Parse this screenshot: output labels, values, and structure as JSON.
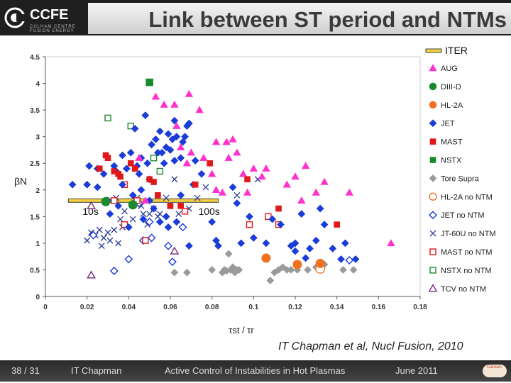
{
  "header": {
    "logo": "CCFE",
    "logo_subtitle": "CULHAM CENTRE FUSION ENERGY",
    "title": "Link between ST period and NTMs"
  },
  "citation": "IT Chapman et al, Nucl Fusion, 2010",
  "footer": {
    "page": "38 / 31",
    "author": "IT Chapman",
    "talk": "Active Control of Instabilities in Hot Plasmas",
    "date": "June 2011",
    "logo": "Cancun"
  },
  "chart_data": {
    "type": "scatter",
    "xlabel": "τst / τr",
    "ylabel": "βN",
    "xlim": [
      0,
      0.18
    ],
    "ylim": [
      0,
      4.5
    ],
    "xticks": [
      "0",
      "0.02",
      "0.04",
      "0.06",
      "0.08",
      "0.1",
      "0.12",
      "0.14",
      "0.16",
      "0.18"
    ],
    "yticks": [
      "0",
      "0.5",
      "1",
      "1.5",
      "2",
      "2.5",
      "3",
      "3.5",
      "4",
      "4.5"
    ],
    "grid": "none",
    "legend_placement": "right",
    "iter_legend": {
      "name": "ITER",
      "color": "#f4d03f"
    },
    "iter_band": {
      "y": 1.8,
      "x_start": 0.011,
      "x_end": 0.083,
      "labels": [
        "10s",
        "100s"
      ]
    },
    "series": [
      {
        "name": "AUG",
        "marker": "triangle",
        "color": "#ff33cc",
        "filled": true,
        "points": [
          [
            0.045,
            2.6
          ],
          [
            0.048,
            1.8
          ],
          [
            0.053,
            3.75
          ],
          [
            0.057,
            3.6
          ],
          [
            0.062,
            3.6
          ],
          [
            0.063,
            3.2
          ],
          [
            0.065,
            2.8
          ],
          [
            0.068,
            2.5
          ],
          [
            0.069,
            3.8
          ],
          [
            0.07,
            2.7
          ],
          [
            0.074,
            3.5
          ],
          [
            0.076,
            2.6
          ],
          [
            0.08,
            2.3
          ],
          [
            0.082,
            2.9
          ],
          [
            0.082,
            2.0
          ],
          [
            0.085,
            1.95
          ],
          [
            0.087,
            2.9
          ],
          [
            0.088,
            2.6
          ],
          [
            0.09,
            2.95
          ],
          [
            0.092,
            2.7
          ],
          [
            0.095,
            2.3
          ],
          [
            0.097,
            1.95
          ],
          [
            0.1,
            2.4
          ],
          [
            0.104,
            2.25
          ],
          [
            0.106,
            2.4
          ],
          [
            0.116,
            2.1
          ],
          [
            0.12,
            2.25
          ],
          [
            0.123,
            1.8
          ],
          [
            0.125,
            2.45
          ],
          [
            0.13,
            1.95
          ],
          [
            0.134,
            2.15
          ],
          [
            0.146,
            1.95
          ],
          [
            0.166,
            1.0
          ]
        ]
      },
      {
        "name": "DIII-D",
        "marker": "circle",
        "color": "#1a8a2e",
        "filled": true,
        "points": [
          [
            0.029,
            1.78
          ],
          [
            0.042,
            1.72
          ]
        ]
      },
      {
        "name": "HL-2A",
        "marker": "circle",
        "color": "#f07020",
        "filled": true,
        "points": [
          [
            0.106,
            0.72
          ],
          [
            0.121,
            0.6
          ],
          [
            0.132,
            0.62
          ]
        ]
      },
      {
        "name": "JET",
        "marker": "diamond",
        "color": "#1a3cd8",
        "filled": true,
        "points": [
          [
            0.013,
            2.1
          ],
          [
            0.02,
            2.1
          ],
          [
            0.021,
            2.45
          ],
          [
            0.025,
            2.4
          ],
          [
            0.025,
            2.05
          ],
          [
            0.028,
            2.3
          ],
          [
            0.03,
            1.8
          ],
          [
            0.031,
            1.55
          ],
          [
            0.033,
            2.45
          ],
          [
            0.034,
            2.35
          ],
          [
            0.035,
            1.7
          ],
          [
            0.037,
            2.1
          ],
          [
            0.037,
            2.65
          ],
          [
            0.039,
            2.4
          ],
          [
            0.04,
            1.3
          ],
          [
            0.041,
            2.7
          ],
          [
            0.042,
            1.9
          ],
          [
            0.043,
            3.15
          ],
          [
            0.044,
            2.45
          ],
          [
            0.045,
            2.3
          ],
          [
            0.046,
            2.0
          ],
          [
            0.046,
            2.6
          ],
          [
            0.047,
            1.45
          ],
          [
            0.048,
            3.4
          ],
          [
            0.049,
            2.5
          ],
          [
            0.05,
            2.2
          ],
          [
            0.05,
            1.8
          ],
          [
            0.051,
            2.85
          ],
          [
            0.052,
            1.65
          ],
          [
            0.053,
            2.95
          ],
          [
            0.054,
            2.7
          ],
          [
            0.055,
            1.4
          ],
          [
            0.055,
            3.1
          ],
          [
            0.056,
            2.7
          ],
          [
            0.057,
            2.5
          ],
          [
            0.058,
            1.5
          ],
          [
            0.058,
            2.8
          ],
          [
            0.059,
            3.05
          ],
          [
            0.059,
            1.3
          ],
          [
            0.06,
            2.75
          ],
          [
            0.061,
            2.95
          ],
          [
            0.062,
            3.3
          ],
          [
            0.062,
            2.55
          ],
          [
            0.063,
            1.4
          ],
          [
            0.063,
            3.0
          ],
          [
            0.065,
            2.6
          ],
          [
            0.065,
            1.9
          ],
          [
            0.066,
            2.9
          ],
          [
            0.067,
            3.0
          ],
          [
            0.068,
            3.2
          ],
          [
            0.069,
            3.25
          ],
          [
            0.069,
            0.95
          ],
          [
            0.071,
            2.1
          ],
          [
            0.072,
            2.55
          ],
          [
            0.075,
            2.3
          ],
          [
            0.08,
            1.4
          ],
          [
            0.082,
            1.05
          ],
          [
            0.083,
            0.95
          ],
          [
            0.09,
            2.05
          ],
          [
            0.092,
            1.75
          ],
          [
            0.094,
            1.0
          ],
          [
            0.098,
            1.5
          ],
          [
            0.1,
            1.1
          ],
          [
            0.106,
            1.0
          ],
          [
            0.109,
            1.45
          ],
          [
            0.113,
            1.35
          ],
          [
            0.118,
            0.95
          ],
          [
            0.12,
            0.85
          ],
          [
            0.12,
            1.0
          ],
          [
            0.123,
            1.55
          ],
          [
            0.125,
            0.72
          ],
          [
            0.127,
            0.9
          ],
          [
            0.13,
            1.05
          ],
          [
            0.132,
            1.65
          ],
          [
            0.134,
            1.35
          ],
          [
            0.138,
            0.9
          ],
          [
            0.142,
            0.7
          ],
          [
            0.144,
            1.0
          ],
          [
            0.149,
            0.7
          ]
        ]
      },
      {
        "name": "MAST",
        "marker": "square",
        "color": "#e01818",
        "filled": true,
        "points": [
          [
            0.026,
            2.4
          ],
          [
            0.029,
            2.65
          ],
          [
            0.03,
            2.6
          ],
          [
            0.033,
            2.35
          ],
          [
            0.035,
            2.3
          ],
          [
            0.036,
            2.25
          ],
          [
            0.041,
            2.5
          ],
          [
            0.043,
            2.4
          ],
          [
            0.05,
            2.2
          ],
          [
            0.052,
            2.15
          ],
          [
            0.054,
            1.9
          ],
          [
            0.06,
            1.7
          ],
          [
            0.065,
            1.7
          ],
          [
            0.072,
            2.1
          ],
          [
            0.079,
            2.5
          ],
          [
            0.097,
            2.2
          ],
          [
            0.112,
            1.65
          ],
          [
            0.14,
            1.35
          ]
        ]
      },
      {
        "name": "NSTX",
        "marker": "square",
        "color": "#1a8a2e",
        "filled": true,
        "points": [
          [
            0.05,
            4.02
          ]
        ]
      },
      {
        "name": "Tore Supra",
        "marker": "diamond",
        "color": "#9a9a9a",
        "filled": true,
        "points": [
          [
            0.062,
            0.45
          ],
          [
            0.068,
            0.45
          ],
          [
            0.08,
            0.5
          ],
          [
            0.085,
            0.45
          ],
          [
            0.086,
            0.5
          ],
          [
            0.087,
            0.48
          ],
          [
            0.088,
            0.8
          ],
          [
            0.089,
            0.5
          ],
          [
            0.09,
            0.55
          ],
          [
            0.091,
            0.45
          ],
          [
            0.092,
            0.5
          ],
          [
            0.093,
            0.5
          ],
          [
            0.108,
            0.3
          ],
          [
            0.11,
            0.45
          ],
          [
            0.112,
            0.5
          ],
          [
            0.114,
            0.55
          ],
          [
            0.116,
            0.5
          ],
          [
            0.118,
            0.5
          ],
          [
            0.121,
            0.5
          ],
          [
            0.126,
            0.5
          ],
          [
            0.13,
            0.55
          ],
          [
            0.134,
            0.6
          ],
          [
            0.143,
            0.5
          ],
          [
            0.148,
            0.5
          ]
        ]
      },
      {
        "name": "HL-2A no NTM",
        "marker": "circle",
        "color": "#f07020",
        "filled": false,
        "points": [
          [
            0.132,
            0.52
          ]
        ]
      },
      {
        "name": "JET no NTM",
        "marker": "diamond",
        "color": "#1a3cd8",
        "filled": false,
        "points": [
          [
            0.023,
            1.15
          ],
          [
            0.033,
            0.48
          ],
          [
            0.04,
            0.7
          ],
          [
            0.045,
            1.75
          ],
          [
            0.047,
            1.05
          ],
          [
            0.05,
            1.4
          ],
          [
            0.051,
            1.1
          ],
          [
            0.059,
            0.95
          ],
          [
            0.061,
            0.65
          ],
          [
            0.066,
            1.3
          ],
          [
            0.146,
            0.68
          ]
        ]
      },
      {
        "name": "JT-60U no NTM",
        "marker": "x",
        "color": "#2a3a9a",
        "filled": true,
        "points": [
          [
            0.02,
            1.05
          ],
          [
            0.022,
            1.2
          ],
          [
            0.024,
            1.15
          ],
          [
            0.026,
            1.25
          ],
          [
            0.027,
            0.95
          ],
          [
            0.028,
            1.1
          ],
          [
            0.03,
            1.2
          ],
          [
            0.031,
            1.05
          ],
          [
            0.033,
            1.25
          ],
          [
            0.034,
            1.85
          ],
          [
            0.035,
            1.0
          ],
          [
            0.036,
            1.45
          ],
          [
            0.037,
            1.3
          ],
          [
            0.038,
            1.6
          ],
          [
            0.042,
            1.45
          ],
          [
            0.044,
            1.85
          ],
          [
            0.046,
            1.7
          ],
          [
            0.047,
            1.55
          ],
          [
            0.049,
            1.35
          ],
          [
            0.05,
            1.55
          ],
          [
            0.052,
            1.65
          ],
          [
            0.054,
            1.5
          ],
          [
            0.055,
            1.55
          ],
          [
            0.058,
            1.85
          ],
          [
            0.06,
            1.7
          ],
          [
            0.062,
            2.2
          ],
          [
            0.064,
            1.55
          ],
          [
            0.069,
            1.65
          ],
          [
            0.073,
            1.85
          ],
          [
            0.077,
            2.05
          ],
          [
            0.092,
            1.9
          ],
          [
            0.102,
            2.2
          ]
        ]
      },
      {
        "name": "MAST no NTM",
        "marker": "square",
        "color": "#e01818",
        "filled": false,
        "points": [
          [
            0.033,
            1.8
          ],
          [
            0.038,
            2.1
          ],
          [
            0.038,
            1.35
          ],
          [
            0.044,
            1.8
          ],
          [
            0.048,
            1.05
          ],
          [
            0.067,
            1.6
          ],
          [
            0.098,
            1.35
          ],
          [
            0.107,
            1.5
          ],
          [
            0.112,
            1.35
          ]
        ]
      },
      {
        "name": "NSTX no NTM",
        "marker": "square",
        "color": "#1a8a2e",
        "filled": false,
        "points": [
          [
            0.03,
            3.35
          ],
          [
            0.041,
            3.2
          ],
          [
            0.052,
            2.6
          ],
          [
            0.055,
            2.35
          ]
        ]
      },
      {
        "name": "TCV no NTM",
        "marker": "triangle",
        "color": "#7a2a7a",
        "filled": false,
        "points": [
          [
            0.022,
            0.4
          ],
          [
            0.022,
            1.7
          ],
          [
            0.062,
            0.85
          ]
        ]
      }
    ]
  }
}
